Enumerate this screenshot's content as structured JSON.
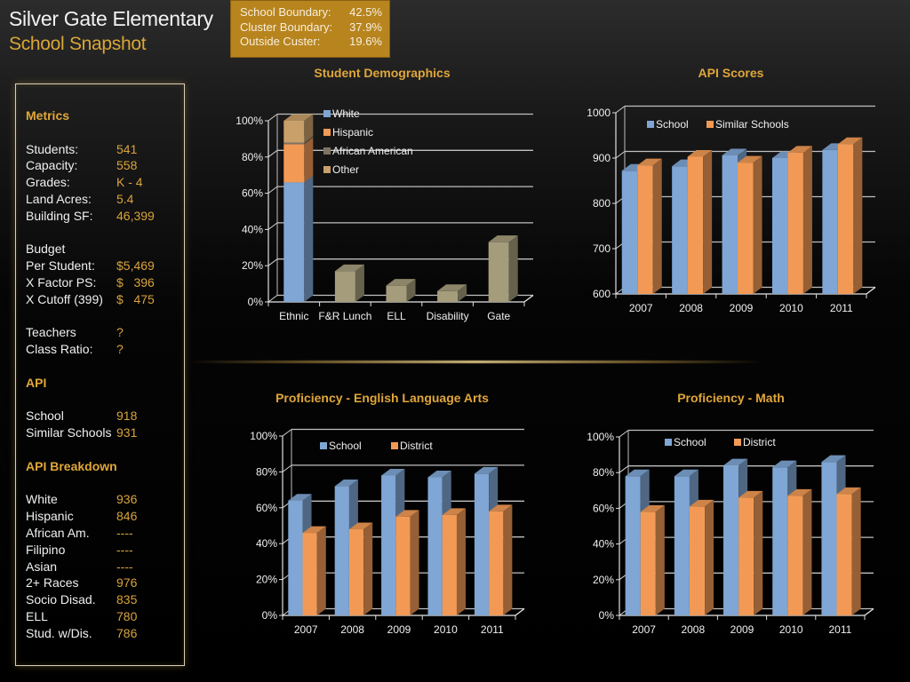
{
  "header": {
    "title": "Silver Gate Elementary",
    "subtitle": "School Snapshot"
  },
  "boundary": [
    {
      "label": "School Boundary:",
      "value": "42.5%"
    },
    {
      "label": "Cluster Boundary:",
      "value": "37.9%"
    },
    {
      "label": "Outside Custer:",
      "value": "19.6%"
    }
  ],
  "metrics": {
    "heading": "Metrics",
    "basic": [
      {
        "label": "Students:",
        "value": "541"
      },
      {
        "label": "Capacity:",
        "value": "558"
      },
      {
        "label": "Grades:",
        "value": "K - 4"
      },
      {
        "label": "Land Acres:",
        "value": "5.4"
      },
      {
        "label": "Building SF:",
        "value": "46,399"
      }
    ],
    "budget_label": "Budget",
    "budget": [
      {
        "label": "Per Student:",
        "value": "$5,469"
      },
      {
        "label": "X Factor PS:",
        "value": "$   396"
      },
      {
        "label": "X Cutoff (399)",
        "value": "$   475"
      }
    ],
    "staff": [
      {
        "label": "Teachers",
        "value": "?"
      },
      {
        "label": "Class Ratio:",
        "value": "?"
      }
    ],
    "api_heading": "API",
    "api": [
      {
        "label": "School",
        "value": "918"
      },
      {
        "label": "Similar Schools",
        "value": "931"
      }
    ],
    "breakdown_heading": "API Breakdown",
    "breakdown": [
      {
        "label": "White",
        "value": "936"
      },
      {
        "label": "Hispanic",
        "value": "846"
      },
      {
        "label": "African Am.",
        "value": "----"
      },
      {
        "label": "Filipino",
        "value": "----"
      },
      {
        "label": "Asian",
        "value": "----"
      },
      {
        "label": "2+ Races",
        "value": "976"
      },
      {
        "label": "Socio Disad.",
        "value": "835"
      },
      {
        "label": "ELL",
        "value": "780"
      },
      {
        "label": "Stud. w/Dis.",
        "value": "786"
      }
    ]
  },
  "colors": {
    "school": "#7fa6d4",
    "orange": "#f29a55",
    "tan": "#a59c7c",
    "brown": "#7e7364",
    "other": "#c9a06a",
    "accent": "#e0a63a"
  },
  "chart_data": [
    {
      "id": "demographics",
      "type": "bar",
      "title": "Student Demographics",
      "stacked_first": true,
      "categories": [
        "Ethnic",
        "F&R Lunch",
        "ELL",
        "Disability",
        "Gate"
      ],
      "stack": [
        {
          "name": "White",
          "value": 66
        },
        {
          "name": "Hispanic",
          "value": 21
        },
        {
          "name": "African American",
          "value": 1
        },
        {
          "name": "Other",
          "value": 12
        }
      ],
      "values": [
        null,
        17,
        9,
        6,
        33
      ],
      "ylim": [
        0,
        100
      ],
      "yticks": [
        "0%",
        "20%",
        "40%",
        "60%",
        "80%",
        "100%"
      ],
      "legend": [
        "White",
        "Hispanic",
        "African American",
        "Other"
      ],
      "legend_position": "top-center",
      "grid": true
    },
    {
      "id": "api",
      "type": "bar",
      "title": "API Scores",
      "categories": [
        "2007",
        "2008",
        "2009",
        "2010",
        "2011"
      ],
      "series": [
        {
          "name": "School",
          "values": [
            872,
            882,
            906,
            900,
            918
          ]
        },
        {
          "name": "Similar Schools",
          "values": [
            884,
            903,
            890,
            912,
            931
          ]
        }
      ],
      "ylim": [
        600,
        1000
      ],
      "yticks": [
        "600",
        "700",
        "800",
        "900",
        "1000"
      ],
      "legend_position": "top-left",
      "grid": true
    },
    {
      "id": "ela",
      "type": "bar",
      "title": "Proficiency - English Language Arts",
      "categories": [
        "2007",
        "2008",
        "2009",
        "2010",
        "2011"
      ],
      "series": [
        {
          "name": "School",
          "values": [
            64,
            72,
            78,
            77,
            79
          ]
        },
        {
          "name": "District",
          "values": [
            46,
            48,
            55,
            56,
            58
          ]
        }
      ],
      "ylim": [
        0,
        100
      ],
      "yticks": [
        "0%",
        "20%",
        "40%",
        "60%",
        "80%",
        "100%"
      ],
      "legend_position": "top-left",
      "grid": true
    },
    {
      "id": "math",
      "type": "bar",
      "title": "Proficiency - Math",
      "categories": [
        "2007",
        "2008",
        "2009",
        "2010",
        "2011"
      ],
      "series": [
        {
          "name": "School",
          "values": [
            78,
            78,
            84,
            83,
            86
          ]
        },
        {
          "name": "District",
          "values": [
            58,
            61,
            66,
            67,
            68
          ]
        }
      ],
      "ylim": [
        0,
        100
      ],
      "yticks": [
        "0%",
        "20%",
        "40%",
        "60%",
        "80%",
        "100%"
      ],
      "legend_position": "top-left",
      "grid": true
    }
  ]
}
